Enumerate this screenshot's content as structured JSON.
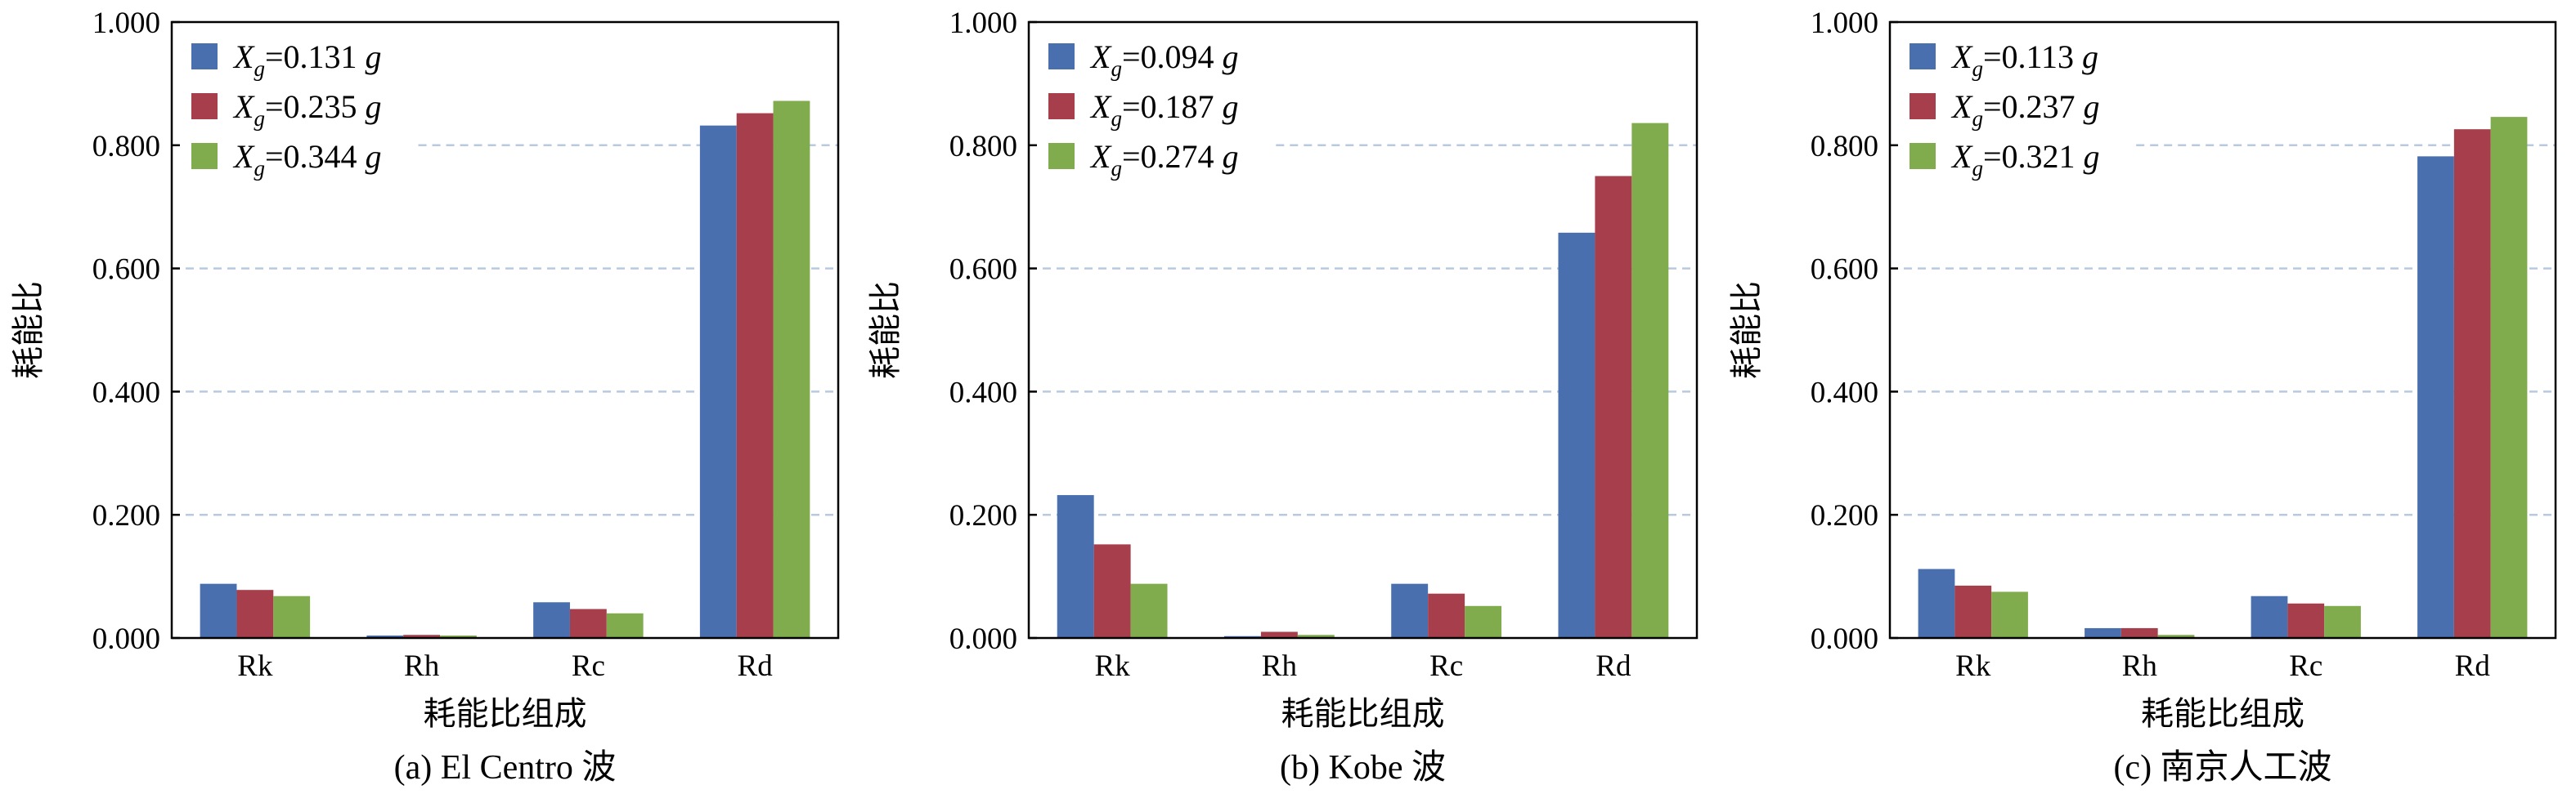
{
  "chart_data": [
    {
      "type": "bar",
      "caption": "(a) El Centro 波",
      "xlabel": "耗能比组成",
      "ylabel": "耗能比",
      "categories": [
        "Rk",
        "Rh",
        "Rc",
        "Rd"
      ],
      "ylim": [
        0,
        1.0
      ],
      "yticks": [
        "0.000",
        "0.200",
        "0.400",
        "0.600",
        "0.800",
        "1.000"
      ],
      "grid": true,
      "legend_position": "top-left",
      "series": [
        {
          "name": "X",
          "sub": "g",
          "value_text": "=0.131 ",
          "unit": "g",
          "color": "#4a6fae",
          "values": [
            0.088,
            0.004,
            0.058,
            0.832
          ]
        },
        {
          "name": "X",
          "sub": "g",
          "value_text": "=0.235 ",
          "unit": "g",
          "color": "#a63e4c",
          "values": [
            0.078,
            0.005,
            0.047,
            0.852
          ]
        },
        {
          "name": "X",
          "sub": "g",
          "value_text": "=0.344 ",
          "unit": "g",
          "color": "#80ac4e",
          "values": [
            0.068,
            0.004,
            0.04,
            0.872
          ]
        }
      ]
    },
    {
      "type": "bar",
      "caption": "(b) Kobe 波",
      "xlabel": "耗能比组成",
      "ylabel": "耗能比",
      "categories": [
        "Rk",
        "Rh",
        "Rc",
        "Rd"
      ],
      "ylim": [
        0,
        1.0
      ],
      "yticks": [
        "0.000",
        "0.200",
        "0.400",
        "0.600",
        "0.800",
        "1.000"
      ],
      "grid": true,
      "legend_position": "top-left",
      "series": [
        {
          "name": "X",
          "sub": "g",
          "value_text": "=0.094 ",
          "unit": "g",
          "color": "#4a6fae",
          "values": [
            0.232,
            0.003,
            0.088,
            0.658
          ]
        },
        {
          "name": "X",
          "sub": "g",
          "value_text": "=0.187 ",
          "unit": "g",
          "color": "#a63e4c",
          "values": [
            0.152,
            0.01,
            0.072,
            0.75
          ]
        },
        {
          "name": "X",
          "sub": "g",
          "value_text": "=0.274 ",
          "unit": "g",
          "color": "#80ac4e",
          "values": [
            0.088,
            0.005,
            0.052,
            0.836
          ]
        }
      ]
    },
    {
      "type": "bar",
      "caption": "(c) 南京人工波",
      "xlabel": "耗能比组成",
      "ylabel": "耗能比",
      "categories": [
        "Rk",
        "Rh",
        "Rc",
        "Rd"
      ],
      "ylim": [
        0,
        1.0
      ],
      "yticks": [
        "0.000",
        "0.200",
        "0.400",
        "0.600",
        "0.800",
        "1.000"
      ],
      "grid": true,
      "legend_position": "top-left",
      "series": [
        {
          "name": "X",
          "sub": "g",
          "value_text": "=0.113 ",
          "unit": "g",
          "color": "#4a6fae",
          "values": [
            0.112,
            0.016,
            0.068,
            0.782
          ]
        },
        {
          "name": "X",
          "sub": "g",
          "value_text": "=0.237 ",
          "unit": "g",
          "color": "#a63e4c",
          "values": [
            0.085,
            0.016,
            0.056,
            0.826
          ]
        },
        {
          "name": "X",
          "sub": "g",
          "value_text": "=0.321 ",
          "unit": "g",
          "color": "#80ac4e",
          "values": [
            0.075,
            0.005,
            0.052,
            0.846
          ]
        }
      ]
    }
  ]
}
